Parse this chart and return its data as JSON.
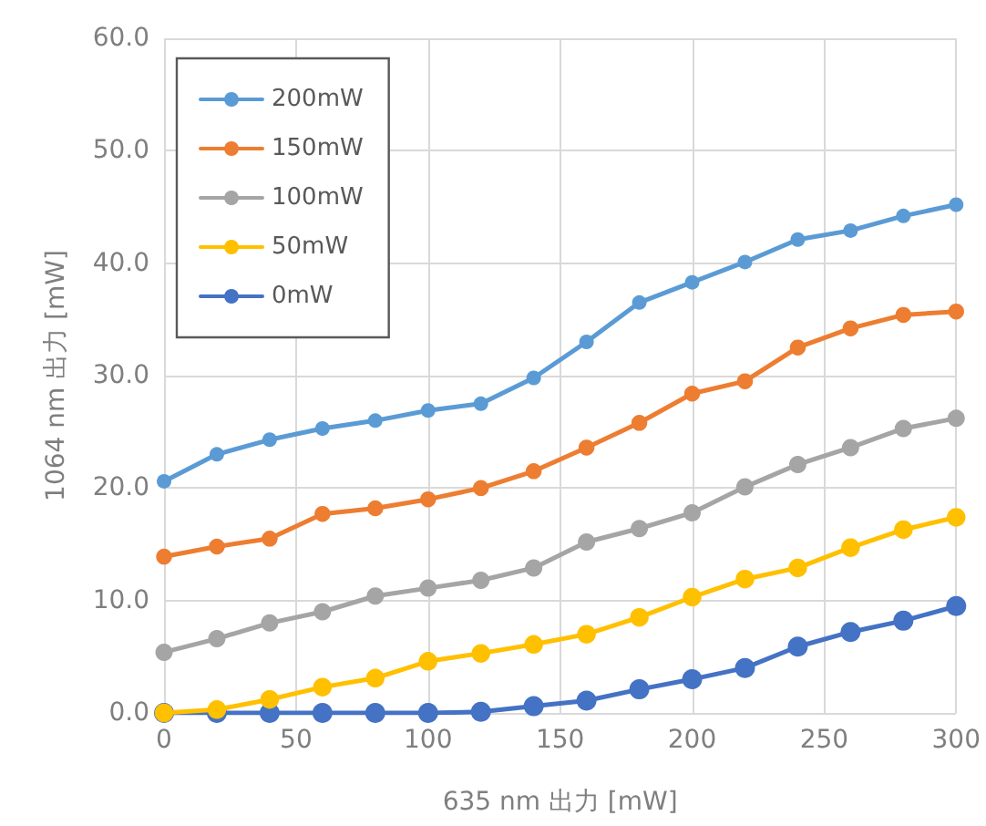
{
  "chart_data": {
    "type": "line",
    "xlabel": "635 nm 出力 [mW]",
    "ylabel": "1064 nm 出力 [mW]",
    "x": [
      0,
      20,
      40,
      60,
      80,
      100,
      120,
      140,
      160,
      180,
      200,
      220,
      240,
      260,
      280,
      300
    ],
    "series": [
      {
        "name": "200mW",
        "color": "#5b9bd5",
        "values": [
          20.6,
          23.0,
          24.3,
          25.3,
          26.0,
          26.9,
          27.5,
          29.8,
          33.0,
          36.5,
          38.3,
          40.1,
          42.1,
          42.9,
          44.2,
          45.2
        ]
      },
      {
        "name": "150mW",
        "color": "#ed7d31",
        "values": [
          13.9,
          14.8,
          15.5,
          17.7,
          18.2,
          19.0,
          20.0,
          21.5,
          23.6,
          25.8,
          28.4,
          29.5,
          32.5,
          34.2,
          35.4,
          35.7
        ]
      },
      {
        "name": "100mW",
        "color": "#a5a5a5",
        "values": [
          5.4,
          6.6,
          8.0,
          9.0,
          10.4,
          11.1,
          11.8,
          12.9,
          15.2,
          16.4,
          17.8,
          20.1,
          22.1,
          23.6,
          25.3,
          26.2
        ]
      },
      {
        "name": "50mW",
        "color": "#ffc000",
        "values": [
          0,
          0.3,
          1.2,
          2.3,
          3.1,
          4.6,
          5.3,
          6.1,
          7.0,
          8.5,
          10.3,
          11.9,
          12.9,
          14.7,
          16.3,
          17.4
        ]
      },
      {
        "name": "0mW",
        "color": "#4472c4",
        "values": [
          0,
          0,
          0,
          0,
          0,
          0,
          0.1,
          0.6,
          1.1,
          2.1,
          3.0,
          4.0,
          5.9,
          7.2,
          8.2,
          9.5
        ]
      }
    ],
    "xlim": [
      0,
      300
    ],
    "xticks": [
      0,
      50,
      100,
      150,
      200,
      250,
      300
    ],
    "ylim": [
      0,
      60
    ],
    "yticks": [
      {
        "value": 0,
        "label": "0.0"
      },
      {
        "value": 10,
        "label": "10.0"
      },
      {
        "value": 20,
        "label": "20.0"
      },
      {
        "value": 30,
        "label": "30.0"
      },
      {
        "value": 40,
        "label": "40.0"
      },
      {
        "value": 50,
        "label": "50.0"
      },
      {
        "value": 60,
        "label": "60.0"
      }
    ],
    "grid": true,
    "legend": "top left",
    "marker": "circle",
    "line_style": "solid"
  }
}
